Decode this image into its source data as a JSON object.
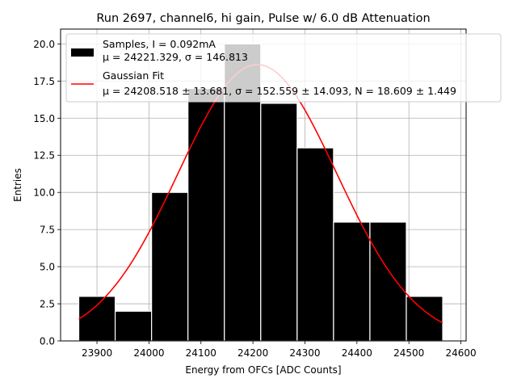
{
  "chart_data": {
    "type": "bar",
    "title": "Run 2697, channel6, hi gain, Pulse w/ 6.0 dB Attenuation",
    "xlabel": "Energy from OFCs [ADC Counts]",
    "ylabel": "Entries",
    "xlim": [
      23830,
      24610
    ],
    "ylim": [
      0,
      21
    ],
    "grid": true,
    "xticks": [
      "23900",
      "24000",
      "24100",
      "24200",
      "24300",
      "24400",
      "24500",
      "24600"
    ],
    "yticks": [
      "0.0",
      "2.5",
      "5.0",
      "7.5",
      "10.0",
      "12.5",
      "15.0",
      "17.5",
      "20.0"
    ],
    "bins": [
      {
        "lo": 23865,
        "hi": 23935,
        "count": 3
      },
      {
        "lo": 23935,
        "hi": 24005,
        "count": 2
      },
      {
        "lo": 24005,
        "hi": 24075,
        "count": 10
      },
      {
        "lo": 24075,
        "hi": 24145,
        "count": 17
      },
      {
        "lo": 24145,
        "hi": 24215,
        "count": 20
      },
      {
        "lo": 24215,
        "hi": 24285,
        "count": 16
      },
      {
        "lo": 24285,
        "hi": 24355,
        "count": 13
      },
      {
        "lo": 24355,
        "hi": 24425,
        "count": 8
      },
      {
        "lo": 24425,
        "hi": 24495,
        "count": 8
      },
      {
        "lo": 24495,
        "hi": 24565,
        "count": 3
      }
    ],
    "fit": {
      "mu": 24208.518,
      "sigma": 152.559,
      "N": 18.609,
      "x_range": [
        23865,
        24565
      ],
      "color": "#ff0000"
    },
    "bar_color": "#000000",
    "legend": {
      "position": "top",
      "samples_line1": "Samples, I = 0.092mA",
      "samples_line2": "μ = 24221.329, σ = 146.813",
      "fit_line1": "Gaussian Fit",
      "fit_line2": "μ = 24208.518 ± 13.681, σ = 152.559 ± 14.093, N = 18.609 ± 1.449"
    }
  }
}
